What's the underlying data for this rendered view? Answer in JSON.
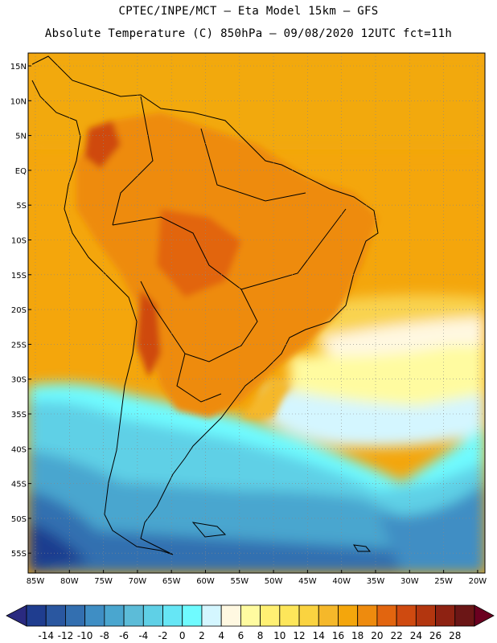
{
  "title": {
    "line1": "CPTEC/INPE/MCT –  Eta Model 15km – GFS",
    "line2": "Absolute Temperature (C) 850hPa – 09/08/2020 12UTC fct=11h"
  },
  "axes": {
    "lat_labels": [
      "15N",
      "10N",
      "5N",
      "EQ",
      "5S",
      "10S",
      "15S",
      "20S",
      "25S",
      "30S",
      "35S",
      "40S",
      "45S",
      "50S",
      "55S"
    ],
    "lon_labels": [
      "85W",
      "80W",
      "75W",
      "70W",
      "65W",
      "60W",
      "55W",
      "50W",
      "45W",
      "40W",
      "35W",
      "30W",
      "25W",
      "20W"
    ]
  },
  "colorbar": {
    "labels": [
      "-14",
      "-12",
      "-10",
      "-8",
      "-6",
      "-4",
      "-2",
      "0",
      "2",
      "4",
      "6",
      "8",
      "10",
      "12",
      "14",
      "16",
      "18",
      "20",
      "22",
      "24",
      "26",
      "28"
    ],
    "colors": [
      "#1f3d8f",
      "#2a57a0",
      "#336fb0",
      "#3f8ec4",
      "#4aa6cf",
      "#5cbcd8",
      "#5fd0e6",
      "#66e6f5",
      "#6ffbff",
      "#d4f6ff",
      "#fff8e1",
      "#fffba0",
      "#fff073",
      "#fde65a",
      "#fad340",
      "#f5b82a",
      "#f4a60c",
      "#ee8b0e",
      "#e2650f",
      "#cf4a10",
      "#b3360f",
      "#8e2212",
      "#6b1616"
    ],
    "low_arrow_color": "#2a2a80",
    "high_arrow_color": "#6b0020"
  }
}
